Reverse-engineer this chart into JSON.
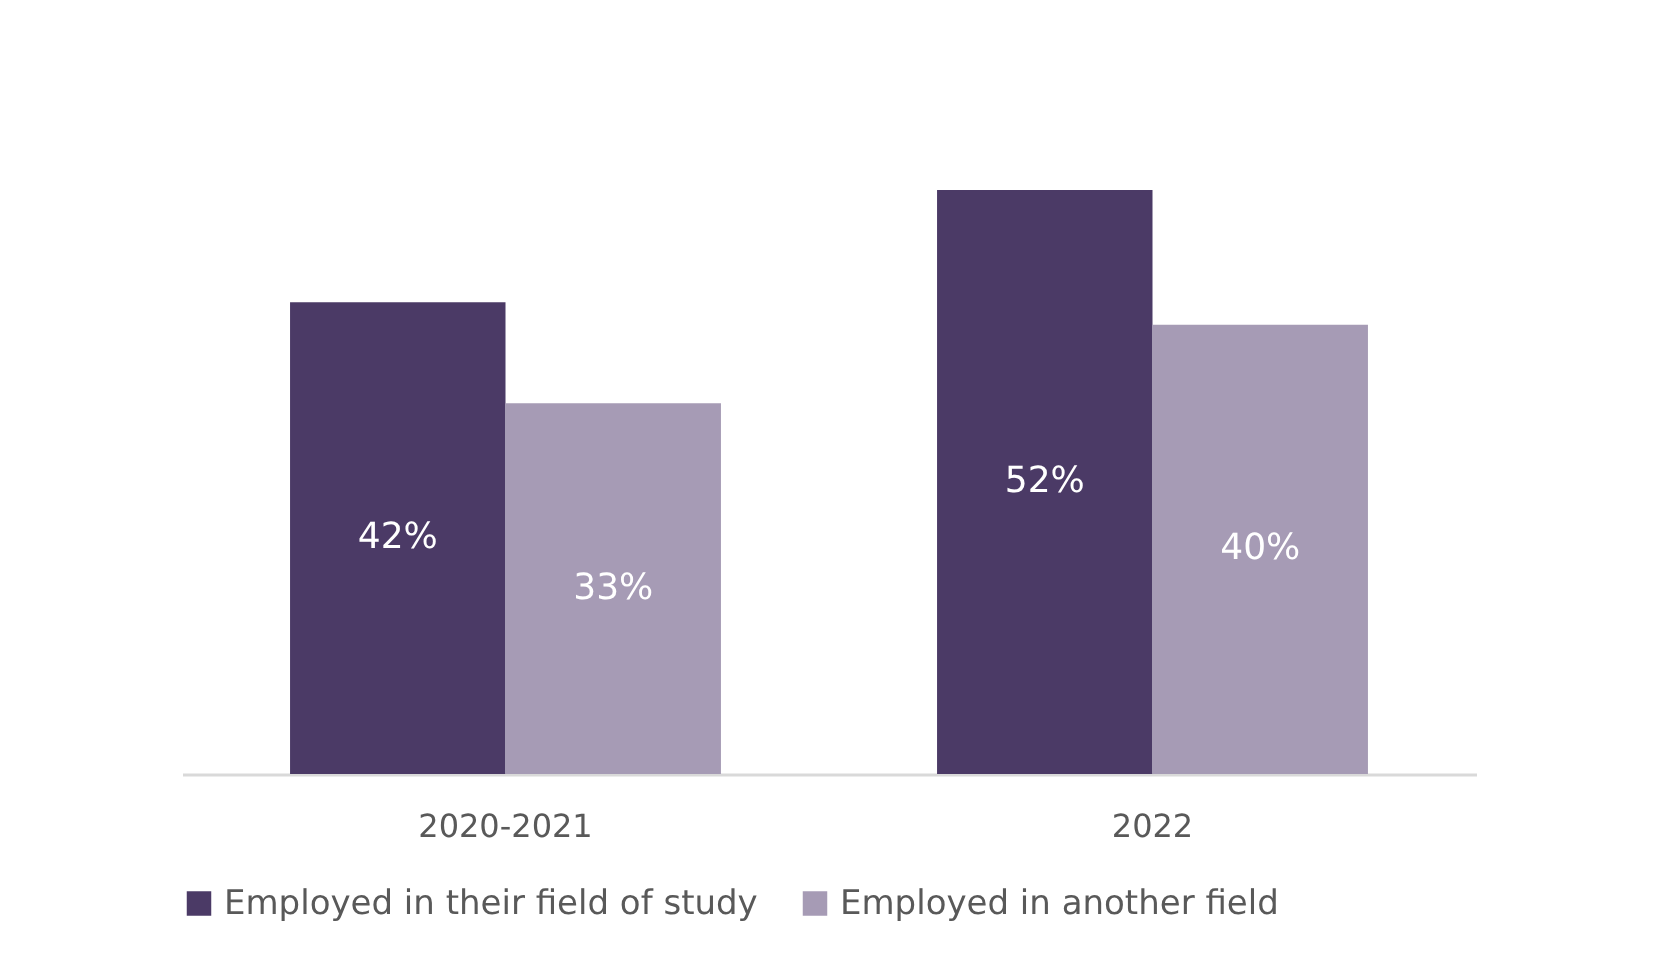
{
  "chart_data": {
    "type": "bar",
    "categories": [
      "2020-2021",
      "2022"
    ],
    "series": [
      {
        "name": "Employed in their field of study",
        "color": "#4b3a66",
        "values": [
          42,
          52
        ],
        "value_labels": [
          "42%",
          "52%"
        ]
      },
      {
        "name": "Employed in another field",
        "color": "#a69bb5",
        "values": [
          33,
          40
        ],
        "value_labels": [
          "33%",
          "40%"
        ]
      }
    ],
    "legend": "bottom",
    "grid": false
  }
}
